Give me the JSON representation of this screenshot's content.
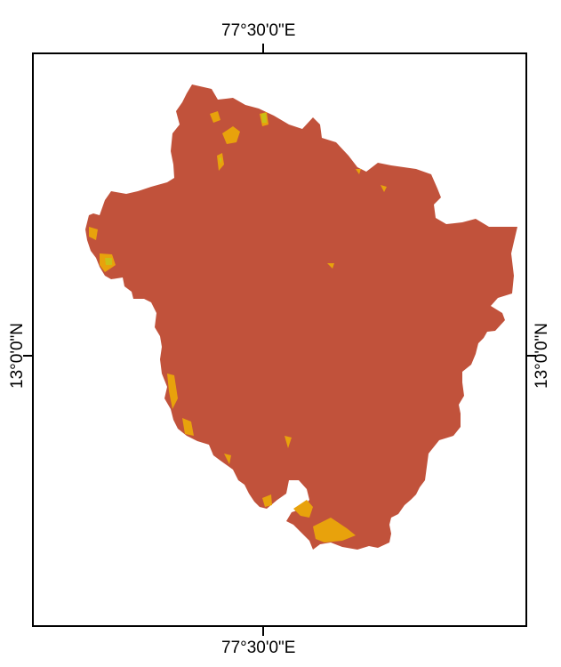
{
  "graticule": {
    "lon_label": "77°30'0\"E",
    "lat_label": "13°0'0\"N"
  },
  "colors": {
    "background": "#ffffff",
    "frame": "#000000",
    "region_primary": "#c1523b",
    "region_secondary": "#e8a20c",
    "region_tertiary": "#c8c018"
  }
}
